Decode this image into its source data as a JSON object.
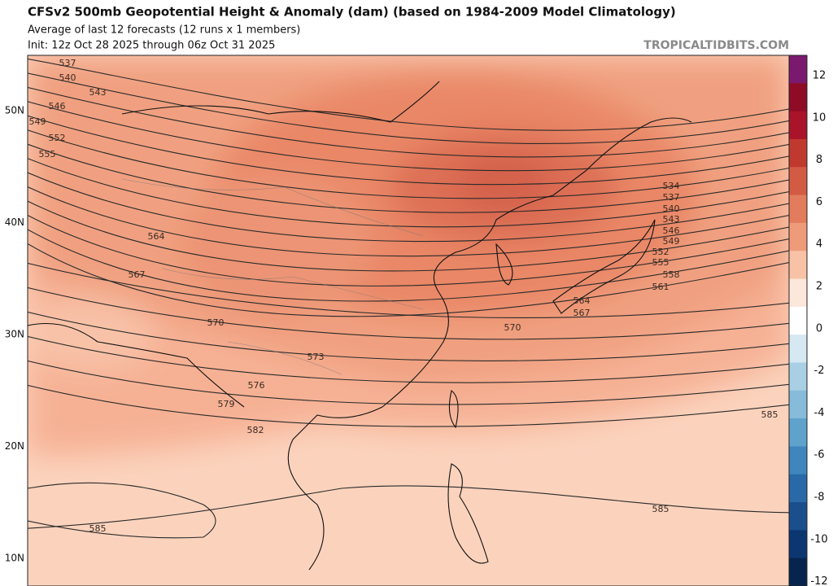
{
  "header": {
    "title": "CFSv2 500mb Geopotential Height & Anomaly (dam) (based on 1984-2009 Model Climatology)",
    "subtitle": "Average of last 12 forecasts (12 runs x 1 members)",
    "init": "Init: 12z Oct 28 2025 through 06z Oct 31 2025",
    "site": "TROPICALTIDBITS.COM"
  },
  "map": {
    "lat_labels": [
      "50N",
      "40N",
      "30N",
      "20N",
      "10N"
    ],
    "contour_labels": [
      537,
      540,
      543,
      546,
      549,
      552,
      555,
      564,
      567,
      570,
      573,
      576,
      579,
      582,
      585,
      534,
      537,
      540,
      543,
      546,
      549,
      552,
      555,
      558,
      561,
      564,
      567,
      570,
      585,
      585
    ]
  },
  "colorbar": {
    "ticks": [
      12,
      10,
      8,
      6,
      4,
      2,
      0,
      -2,
      -4,
      -6,
      -8,
      -10,
      -12
    ]
  }
}
